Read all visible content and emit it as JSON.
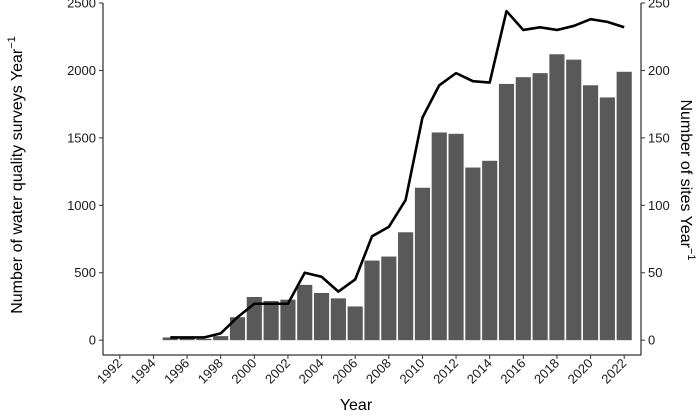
{
  "chart_data": {
    "type": "bar",
    "xlabel": "Year",
    "ylabel_left": "Number of water quality surveys Year",
    "ylabel_left_exponent": "−1",
    "ylabel_right": "Number of sites Year",
    "ylabel_right_exponent": "−1",
    "x_ticks": [
      "1992",
      "1994",
      "1996",
      "1998",
      "2000",
      "2002",
      "2004",
      "2006",
      "2008",
      "2010",
      "2012",
      "2014",
      "2016",
      "2018",
      "2020",
      "2022"
    ],
    "x_range": [
      1991,
      2023
    ],
    "y_left_ticks": [
      "0",
      "500",
      "1000",
      "1500",
      "2000",
      "2500"
    ],
    "y_left_range": [
      -110,
      2500
    ],
    "y_right_ticks": [
      "0",
      "50",
      "100",
      "150",
      "200",
      "250"
    ],
    "y_right_range": [
      -11,
      250
    ],
    "grid": false,
    "legend": "none",
    "bar_color": "#595959",
    "line_color": "#000000",
    "series": [
      {
        "type": "bar",
        "axis": "left",
        "x": [
          1995,
          1996,
          1997,
          1998,
          1999,
          2000,
          2001,
          2002,
          2003,
          2004,
          2005,
          2006,
          2007,
          2008,
          2009,
          2010,
          2011,
          2012,
          2013,
          2014,
          2015,
          2016,
          2017,
          2018,
          2019,
          2020,
          2021,
          2022
        ],
        "values": [
          20,
          20,
          10,
          30,
          170,
          320,
          290,
          300,
          410,
          350,
          310,
          250,
          590,
          620,
          800,
          1130,
          1540,
          1530,
          1280,
          1330,
          1900,
          1950,
          1980,
          2120,
          2080,
          1890,
          1800,
          1990
        ]
      },
      {
        "type": "line",
        "axis": "right",
        "x": [
          1995,
          1996,
          1997,
          1998,
          1999,
          2000,
          2001,
          2002,
          2003,
          2004,
          2005,
          2006,
          2007,
          2008,
          2009,
          2010,
          2011,
          2012,
          2013,
          2014,
          2015,
          2016,
          2017,
          2018,
          2019,
          2020,
          2021,
          2022
        ],
        "values": [
          2,
          2,
          2,
          5,
          17,
          27,
          27,
          27,
          50,
          47,
          36,
          45,
          77,
          84,
          104,
          165,
          189,
          198,
          192,
          191,
          244,
          230,
          232,
          230,
          233,
          238,
          236,
          232
        ]
      }
    ]
  }
}
